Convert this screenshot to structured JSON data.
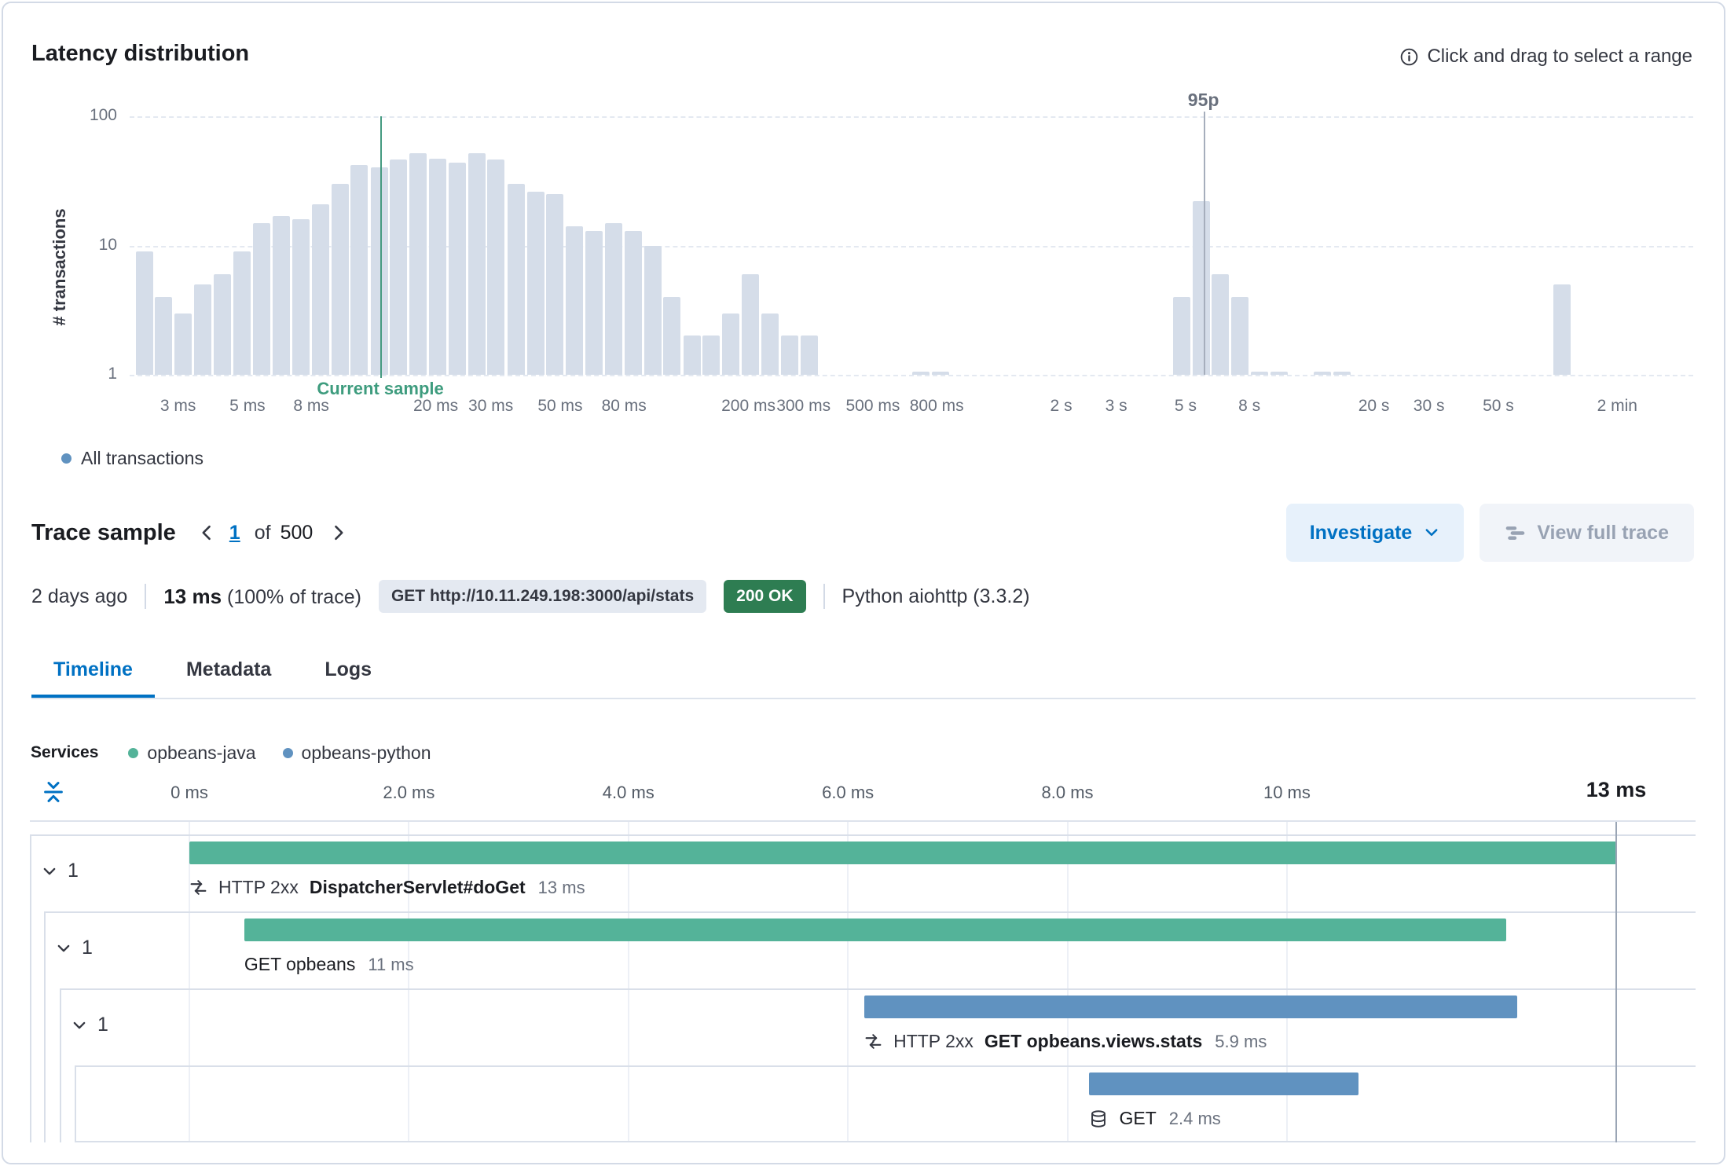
{
  "latency_section": {
    "title": "Latency distribution",
    "hint": "Click and drag to select a range",
    "legend_all": "All transactions",
    "legend_dot_color": "#6092c0"
  },
  "chart_data": {
    "type": "bar",
    "title": "Latency distribution",
    "ylabel": "# transactions",
    "x_scale": "log",
    "y_scale": "log",
    "x_range_ms": [
      2.1,
      210000
    ],
    "y_ticks": [
      1,
      10,
      100
    ],
    "x_ticks": [
      {
        "ms": 3,
        "label": "3 ms"
      },
      {
        "ms": 5,
        "label": "5 ms"
      },
      {
        "ms": 8,
        "label": "8 ms"
      },
      {
        "ms": 20,
        "label": "20 ms"
      },
      {
        "ms": 30,
        "label": "30 ms"
      },
      {
        "ms": 50,
        "label": "50 ms"
      },
      {
        "ms": 80,
        "label": "80 ms"
      },
      {
        "ms": 200,
        "label": "200 ms"
      },
      {
        "ms": 300,
        "label": "300 ms"
      },
      {
        "ms": 500,
        "label": "500 ms"
      },
      {
        "ms": 800,
        "label": "800 ms"
      },
      {
        "ms": 2000,
        "label": "2 s"
      },
      {
        "ms": 3000,
        "label": "3 s"
      },
      {
        "ms": 5000,
        "label": "5 s"
      },
      {
        "ms": 8000,
        "label": "8 s"
      },
      {
        "ms": 20000,
        "label": "20 s"
      },
      {
        "ms": 30000,
        "label": "30 s"
      },
      {
        "ms": 50000,
        "label": "50 s"
      },
      {
        "ms": 120000,
        "label": "2 min"
      }
    ],
    "bar_color": "#d5dde9",
    "bars": [
      {
        "ms": 2.35,
        "count": 9
      },
      {
        "ms": 2.7,
        "count": 4
      },
      {
        "ms": 3.12,
        "count": 3
      },
      {
        "ms": 3.6,
        "count": 5
      },
      {
        "ms": 4.16,
        "count": 6
      },
      {
        "ms": 4.8,
        "count": 9
      },
      {
        "ms": 5.55,
        "count": 15
      },
      {
        "ms": 6.4,
        "count": 17
      },
      {
        "ms": 7.4,
        "count": 16
      },
      {
        "ms": 8.55,
        "count": 21
      },
      {
        "ms": 9.9,
        "count": 30
      },
      {
        "ms": 11.4,
        "count": 42
      },
      {
        "ms": 13.2,
        "count": 40
      },
      {
        "ms": 15.2,
        "count": 46
      },
      {
        "ms": 17.6,
        "count": 52
      },
      {
        "ms": 20.3,
        "count": 47
      },
      {
        "ms": 23.4,
        "count": 44
      },
      {
        "ms": 27.1,
        "count": 52
      },
      {
        "ms": 31.2,
        "count": 46
      },
      {
        "ms": 36.1,
        "count": 30
      },
      {
        "ms": 41.7,
        "count": 26
      },
      {
        "ms": 48.1,
        "count": 25
      },
      {
        "ms": 55.6,
        "count": 14
      },
      {
        "ms": 64.2,
        "count": 13
      },
      {
        "ms": 74.1,
        "count": 15
      },
      {
        "ms": 85.6,
        "count": 13
      },
      {
        "ms": 98.9,
        "count": 10
      },
      {
        "ms": 114,
        "count": 4
      },
      {
        "ms": 132,
        "count": 2
      },
      {
        "ms": 152,
        "count": 2
      },
      {
        "ms": 176,
        "count": 3
      },
      {
        "ms": 203,
        "count": 6
      },
      {
        "ms": 235,
        "count": 3
      },
      {
        "ms": 271,
        "count": 2
      },
      {
        "ms": 313,
        "count": 2
      },
      {
        "ms": 711,
        "count": 1
      },
      {
        "ms": 821,
        "count": 1
      },
      {
        "ms": 4850,
        "count": 4
      },
      {
        "ms": 5600,
        "count": 22
      },
      {
        "ms": 6470,
        "count": 6
      },
      {
        "ms": 7470,
        "count": 4
      },
      {
        "ms": 8630,
        "count": 1
      },
      {
        "ms": 9960,
        "count": 1
      },
      {
        "ms": 13700,
        "count": 1
      },
      {
        "ms": 15800,
        "count": 1
      },
      {
        "ms": 80000,
        "count": 5
      }
    ],
    "current_sample": {
      "ms": 13.3,
      "label": "Current sample",
      "line_color": "#459a80",
      "text_color": "#3e9c7e"
    },
    "percentile_95": {
      "ms": 5700,
      "label": "95p",
      "line_color": "#a6aebc"
    }
  },
  "trace_sample": {
    "title": "Trace sample",
    "pagination": {
      "current": "1",
      "of": "of",
      "total": "500"
    },
    "investigate_button": "Investigate",
    "view_full_trace_button": "View full trace",
    "summary": {
      "age": "2 days ago",
      "duration": "13 ms",
      "duration_pct": "(100% of trace)",
      "request_badge": "GET http://10.11.249.198:3000/api/stats",
      "status_badge": "200 OK",
      "status_color": "#2e7d52",
      "agent": "Python aiohttp (3.3.2)"
    },
    "tabs": [
      {
        "label": "Timeline",
        "active": true
      },
      {
        "label": "Metadata",
        "active": false
      },
      {
        "label": "Logs",
        "active": false
      }
    ]
  },
  "waterfall": {
    "services_label": "Services",
    "legend": [
      {
        "name": "opbeans-java",
        "color": "#54b399"
      },
      {
        "name": "opbeans-python",
        "color": "#6092c0"
      }
    ],
    "total_ms": 13,
    "ticks": [
      {
        "ms": 0,
        "label": "0 ms"
      },
      {
        "ms": 2,
        "label": "2.0 ms"
      },
      {
        "ms": 4,
        "label": "4.0 ms"
      },
      {
        "ms": 6,
        "label": "6.0 ms"
      },
      {
        "ms": 8,
        "label": "8.0 ms"
      },
      {
        "ms": 10,
        "label": "10 ms"
      },
      {
        "ms": 13,
        "label": "13 ms",
        "emphasis": true
      }
    ],
    "rows": [
      {
        "depth": 0,
        "toggle_count": "1",
        "start_ms": 0,
        "duration_ms": 13,
        "color": "#54b399",
        "icon": "http-exchange-icon",
        "prefix": "HTTP 2xx",
        "name": "DispatcherServlet#doGet",
        "name_bold": true,
        "duration_label": "13 ms"
      },
      {
        "depth": 1,
        "toggle_count": "1",
        "start_ms": 0.5,
        "duration_ms": 11.5,
        "color": "#54b399",
        "icon": null,
        "prefix": null,
        "name": "GET opbeans",
        "name_bold": false,
        "duration_label": "11 ms"
      },
      {
        "depth": 2,
        "toggle_count": "1",
        "start_ms": 6.15,
        "duration_ms": 5.95,
        "color": "#6092c0",
        "icon": "http-exchange-icon",
        "prefix": "HTTP 2xx",
        "name": "GET opbeans.views.stats",
        "name_bold": true,
        "duration_label": "5.9 ms"
      },
      {
        "depth": 3,
        "toggle_count": null,
        "start_ms": 8.2,
        "duration_ms": 2.45,
        "color": "#6092c0",
        "icon": "database-icon",
        "prefix": null,
        "name": "GET",
        "name_bold": false,
        "duration_label": "2.4 ms"
      }
    ]
  }
}
